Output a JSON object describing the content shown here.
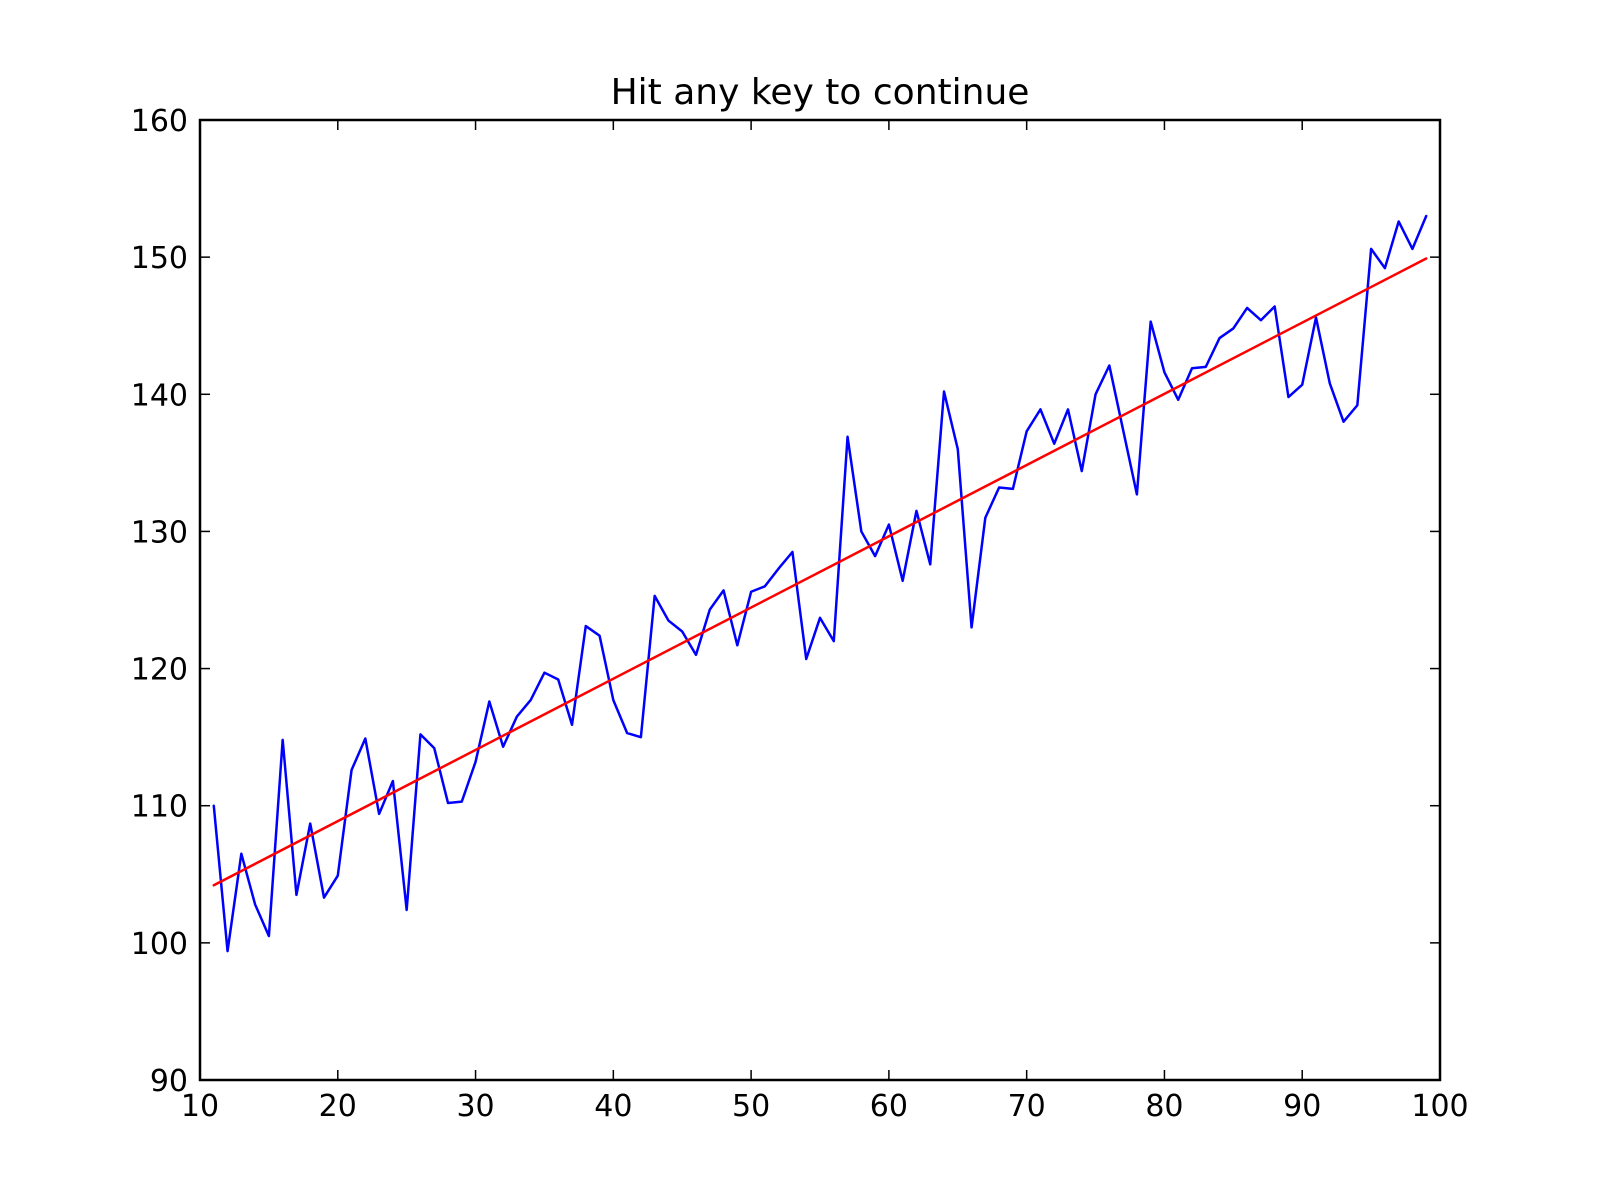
{
  "chart_data": {
    "type": "line",
    "title": "Hit any key to continue",
    "xlabel": "",
    "ylabel": "",
    "xlim": [
      10,
      100
    ],
    "ylim": [
      90,
      160
    ],
    "xticks": [
      10,
      20,
      30,
      40,
      50,
      60,
      70,
      80,
      90,
      100
    ],
    "yticks": [
      90,
      100,
      110,
      120,
      130,
      140,
      150,
      160
    ],
    "grid": false,
    "legend": "none",
    "series": [
      {
        "color": "#0000ff",
        "x": [
          11,
          12,
          13,
          14,
          15,
          16,
          17,
          18,
          19,
          20,
          21,
          22,
          23,
          24,
          25,
          26,
          27,
          28,
          29,
          30,
          31,
          32,
          33,
          34,
          35,
          36,
          37,
          38,
          39,
          40,
          41,
          42,
          43,
          44,
          45,
          46,
          47,
          48,
          49,
          50,
          51,
          52,
          53,
          54,
          55,
          56,
          57,
          58,
          59,
          60,
          61,
          62,
          63,
          64,
          65,
          66,
          67,
          68,
          69,
          70,
          71,
          72,
          73,
          74,
          75,
          76,
          77,
          78,
          79,
          80,
          81,
          82,
          83,
          84,
          85,
          86,
          87,
          88,
          89,
          90,
          91,
          92,
          93,
          94,
          95,
          96,
          97,
          98,
          99
        ],
        "y": [
          110.0,
          99.4,
          106.5,
          102.8,
          100.5,
          114.8,
          103.5,
          108.7,
          103.3,
          104.9,
          112.6,
          114.9,
          109.4,
          111.8,
          102.4,
          115.2,
          114.2,
          110.2,
          110.3,
          113.2,
          117.6,
          114.3,
          116.5,
          117.7,
          119.7,
          119.2,
          115.9,
          123.1,
          122.4,
          117.7,
          115.3,
          115.0,
          125.3,
          123.5,
          122.7,
          121.0,
          124.3,
          125.7,
          121.7,
          125.6,
          126.0,
          127.3,
          128.5,
          120.7,
          123.7,
          122.0,
          136.9,
          130.0,
          128.2,
          130.5,
          126.4,
          131.5,
          127.6,
          140.2,
          136.0,
          123.0,
          131.0,
          133.2,
          133.1,
          137.3,
          138.9,
          136.4,
          138.9,
          134.4,
          140.0,
          142.1,
          137.4,
          132.7,
          145.3,
          141.6,
          139.6,
          141.9,
          142.0,
          144.1,
          144.8,
          146.3,
          145.4,
          146.4,
          139.8,
          140.7,
          145.6,
          140.8,
          138.0,
          139.2,
          150.6,
          149.2,
          152.6,
          150.6,
          153.0
        ]
      },
      {
        "color": "#ff0000",
        "x": [
          11,
          99
        ],
        "y": [
          104.2,
          149.9
        ]
      }
    ]
  }
}
